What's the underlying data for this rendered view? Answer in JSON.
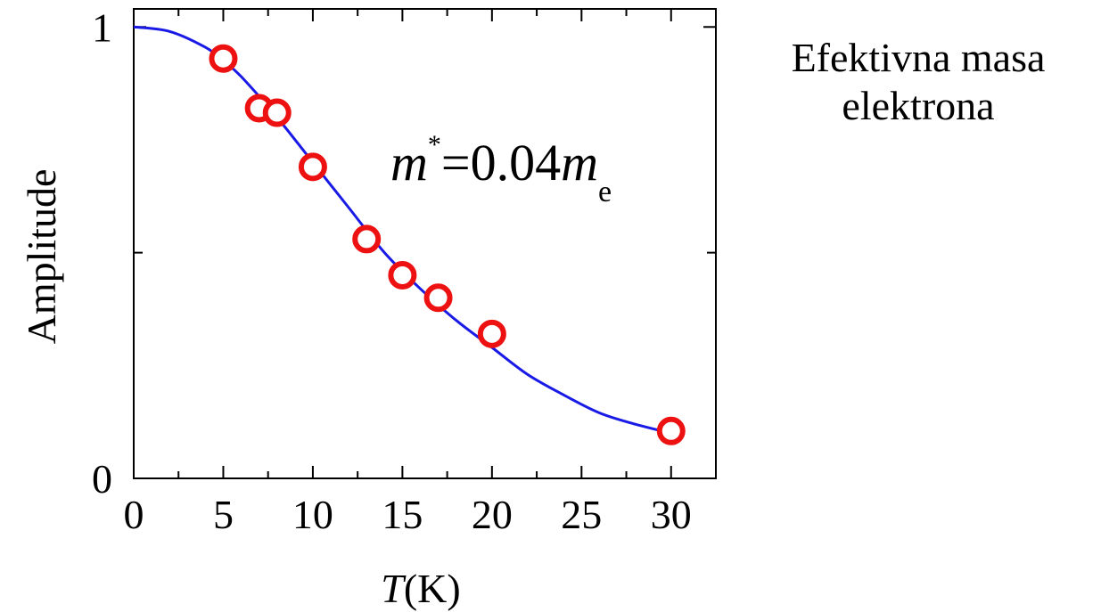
{
  "side_title": {
    "line1": "Efektivna masa",
    "line2": "elektrona"
  },
  "chart_data": {
    "type": "scatter",
    "xlabel_var": "T",
    "xlabel_unit": "(K)",
    "ylabel": "Amplitude",
    "xlim": [
      0,
      32.5
    ],
    "ylim": [
      0,
      1.04
    ],
    "xticks": [
      0,
      5,
      10,
      15,
      20,
      25,
      30
    ],
    "xtick_labels": [
      "0",
      "5",
      "10",
      "15",
      "20",
      "25",
      "30"
    ],
    "yticks": [
      0,
      1
    ],
    "ytick_labels": [
      "0",
      "1"
    ],
    "x_minor_step": 2.5,
    "y_minor": [
      0.5
    ],
    "grid": false,
    "annotation": {
      "m": "m",
      "star": "*",
      "eq": "=0.04",
      "m2": "m",
      "sub": "e"
    },
    "points": {
      "x": [
        5,
        7,
        8,
        10,
        13,
        15,
        17,
        20,
        30
      ],
      "y": [
        0.93,
        0.82,
        0.81,
        0.69,
        0.53,
        0.45,
        0.4,
        0.32,
        0.105
      ]
    },
    "fit_curve": {
      "x": [
        0,
        2,
        4,
        5,
        6,
        8,
        10,
        12,
        14,
        16,
        18,
        20,
        22,
        24,
        26,
        28,
        30
      ],
      "y": [
        1.0,
        0.99,
        0.955,
        0.925,
        0.89,
        0.8,
        0.7,
        0.6,
        0.5,
        0.42,
        0.35,
        0.29,
        0.23,
        0.185,
        0.145,
        0.12,
        0.1
      ]
    },
    "colors": {
      "points": "#ee1111",
      "curve": "#1a1ae6",
      "axes": "#000000"
    }
  }
}
